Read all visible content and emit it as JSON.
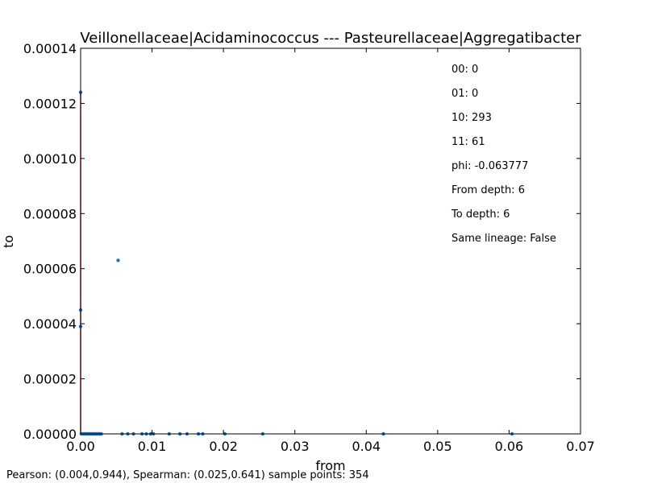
{
  "chart_data": {
    "type": "scatter",
    "title": "Veillonellaceae|Acidaminococcus --- Pasteurellaceae|Aggregatibacter",
    "xlabel": "from",
    "ylabel": "to",
    "xlim": [
      0.0,
      0.07
    ],
    "ylim": [
      0.0,
      0.00014
    ],
    "x_ticks": [
      0.0,
      0.01,
      0.02,
      0.03,
      0.04,
      0.05,
      0.06,
      0.07
    ],
    "x_tick_labels": [
      "0.00",
      "0.01",
      "0.02",
      "0.03",
      "0.04",
      "0.05",
      "0.06",
      "0.07"
    ],
    "y_ticks": [
      0.0,
      2e-05,
      4e-05,
      6e-05,
      8e-05,
      0.0001,
      0.00012,
      0.00014
    ],
    "y_tick_labels": [
      "0.00000",
      "0.00002",
      "0.00004",
      "0.00006",
      "0.00008",
      "0.00010",
      "0.00012",
      "0.00014"
    ],
    "grid": false,
    "series": [
      {
        "color": "#1f6fd1",
        "points": [
          [
            0.0,
            0.000124
          ],
          [
            0.0,
            4.5e-05
          ],
          [
            0.0,
            3.9e-05
          ],
          [
            0.00525,
            6.3e-05
          ],
          [
            0.0001,
            0.0
          ],
          [
            0.0003,
            0.0
          ],
          [
            0.0005,
            0.0
          ],
          [
            0.0007,
            0.0
          ],
          [
            0.0009,
            0.0
          ],
          [
            0.0011,
            0.0
          ],
          [
            0.0013,
            0.0
          ],
          [
            0.0015,
            0.0
          ],
          [
            0.0017,
            0.0
          ],
          [
            0.0019,
            0.0
          ],
          [
            0.0021,
            0.0
          ],
          [
            0.0023,
            0.0
          ],
          [
            0.0025,
            0.0
          ],
          [
            0.0027,
            0.0
          ],
          [
            0.0029,
            0.0
          ],
          [
            0.0058,
            0.0
          ],
          [
            0.0066,
            0.0
          ],
          [
            0.0074,
            0.0
          ],
          [
            0.0086,
            0.0
          ],
          [
            0.0092,
            0.0
          ],
          [
            0.0098,
            0.0
          ],
          [
            0.0102,
            0.0
          ],
          [
            0.0124,
            0.0
          ],
          [
            0.0139,
            0.0
          ],
          [
            0.0149,
            0.0
          ],
          [
            0.0165,
            0.0
          ],
          [
            0.0171,
            0.0
          ],
          [
            0.0202,
            0.0
          ],
          [
            0.0255,
            0.0
          ],
          [
            0.0424,
            0.0
          ],
          [
            0.0604,
            0.0
          ]
        ]
      }
    ],
    "regression_line": {
      "color": "#d62728",
      "x": [
        0.0,
        0.0
      ],
      "y": [
        0.0,
        0.000124
      ]
    },
    "annotations": [
      "00: 0",
      "01: 0",
      "10: 293",
      "11: 61",
      "phi: -0.063777",
      "From depth: 6",
      "To depth: 6",
      "Same lineage: False"
    ],
    "footer": "Pearson: (0.004,0.944), Spearman: (0.025,0.641) sample points: 354"
  }
}
